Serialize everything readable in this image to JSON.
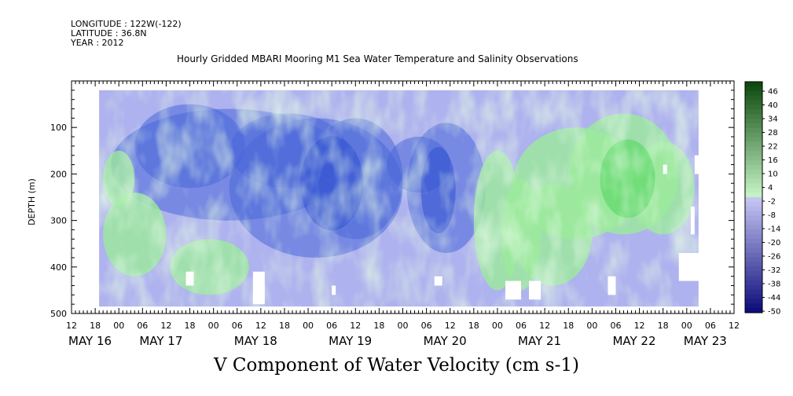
{
  "header": {
    "longitude": "LONGITUDE : 122W(-122)",
    "latitude": "LATITUDE : 36.8N",
    "year": "YEAR : 2012"
  },
  "chart_data": {
    "type": "heatmap",
    "title": "Hourly Gridded MBARI Mooring M1 Sea Water Temperature and Salinity Observations",
    "xlabel": "V Component of Water Velocity (cm s-1)",
    "ylabel": "DEPTH (m)",
    "ylim": [
      500,
      0
    ],
    "y_ticks": [
      100,
      200,
      300,
      400,
      500
    ],
    "y_tick_labels": [
      "100",
      "200",
      "300",
      "400",
      "500"
    ],
    "x_axis": "hours from May 16 12:00, 2012",
    "xlim_hours": [
      0,
      168
    ],
    "x_tick_labels": [
      "12",
      "18",
      "00",
      "06",
      "12",
      "18",
      "00",
      "06",
      "12",
      "18",
      "00",
      "06",
      "12",
      "18",
      "00",
      "06",
      "12",
      "18",
      "00",
      "06",
      "12",
      "18",
      "00",
      "06",
      "12",
      "18",
      "00",
      "06",
      "12"
    ],
    "day_labels": [
      {
        "label": "MAY 16",
        "hour": 0
      },
      {
        "label": "MAY 17",
        "hour": 18
      },
      {
        "label": "MAY 18",
        "hour": 42
      },
      {
        "label": "MAY 19",
        "hour": 66
      },
      {
        "label": "MAY 20",
        "hour": 90
      },
      {
        "label": "MAY 21",
        "hour": 114
      },
      {
        "label": "MAY 22",
        "hour": 138
      },
      {
        "label": "MAY 23",
        "hour": 156
      }
    ],
    "data_hour_range": [
      7,
      159
    ],
    "data_depth_range": [
      20,
      485
    ],
    "colorbar": {
      "min": -50,
      "max": 50,
      "labels": [
        "46",
        "40",
        "34",
        "28",
        "22",
        "16",
        "10",
        "4",
        "-2",
        "-8",
        "-14",
        "-20",
        "-26",
        "-32",
        "-38",
        "-44",
        "-50"
      ],
      "negative_color_deep": "#0a0a78",
      "negative_color_light": "#c8c8f5",
      "positive_color_light": "#c8f5c8",
      "positive_color_deep": "#0a460a"
    },
    "field_structure": [
      {
        "hours": [
          7,
          20
        ],
        "v_range": [
          -14,
          10
        ],
        "note": "mixed light blue/green"
      },
      {
        "hours": [
          24,
          48
        ],
        "v_range": [
          -26,
          4
        ],
        "note": "mostly blue, green patches at depth"
      },
      {
        "hours": [
          48,
          84
        ],
        "v_range": [
          -32,
          -8
        ],
        "note": "strongest negative, core ~220 m"
      },
      {
        "hours": [
          84,
          102
        ],
        "v_range": [
          -32,
          -2
        ],
        "note": "negative core ~230 m"
      },
      {
        "hours": [
          102,
          120
        ],
        "v_range": [
          -14,
          16
        ],
        "note": "green plumes rising from depth"
      },
      {
        "hours": [
          120,
          154
        ],
        "v_range": [
          -8,
          22
        ],
        "note": "predominantly positive, 150-400 m"
      }
    ]
  }
}
